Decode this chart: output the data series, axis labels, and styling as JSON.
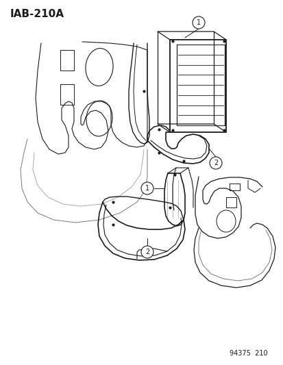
{
  "bg_color": "#ffffff",
  "title_text": "IAB-210A",
  "title_fontsize": 11,
  "footer_text": "94375  210",
  "footer_fontsize": 7,
  "line_color": "#1a1a1a",
  "line_color_light": "#888888"
}
